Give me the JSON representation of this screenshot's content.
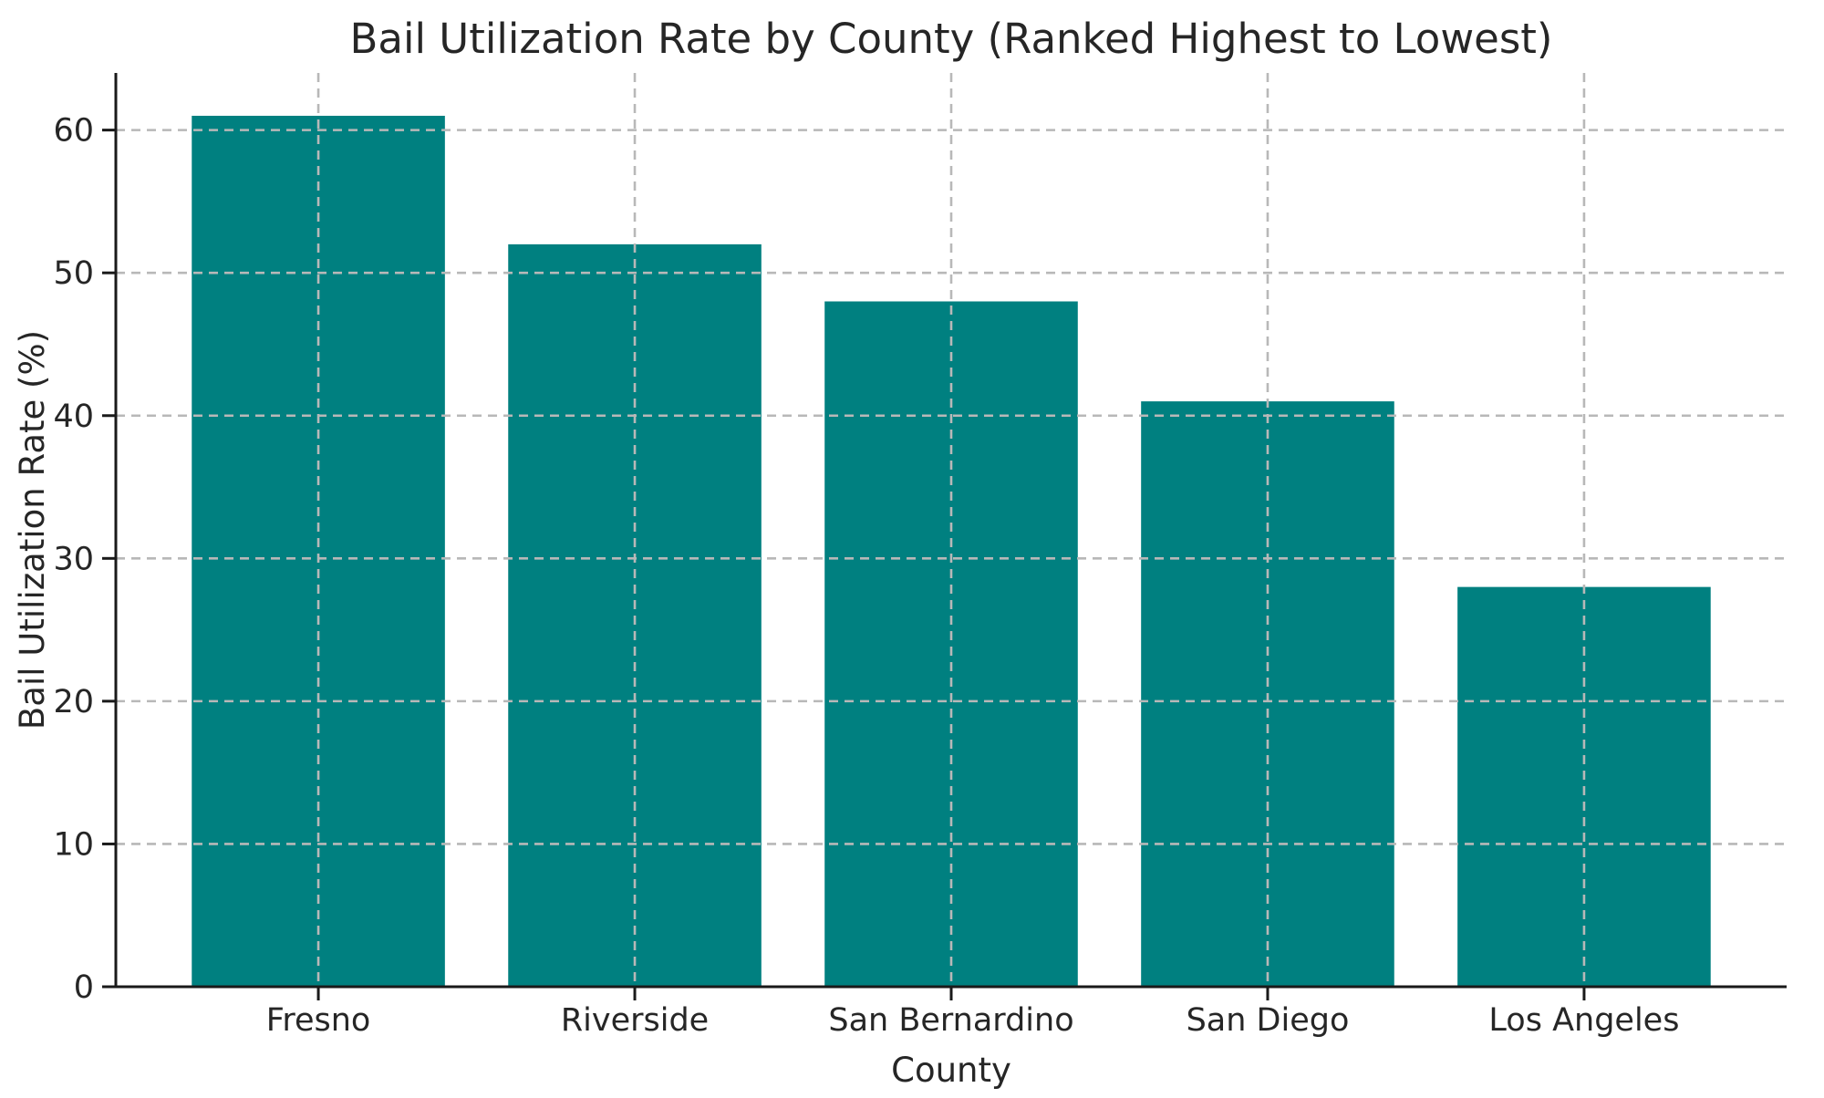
{
  "figure": {
    "background_color": "#ffffff"
  },
  "chart_data": {
    "type": "bar",
    "title": "Bail Utilization Rate by County (Ranked Highest to Lowest)",
    "xlabel": "County",
    "ylabel": "Bail Utilization Rate (%)",
    "categories": [
      "Fresno",
      "Riverside",
      "San Bernardino",
      "San Diego",
      "Los Angeles"
    ],
    "values": [
      61,
      52,
      48,
      41,
      28
    ],
    "yticks": [
      0,
      10,
      20,
      30,
      40,
      50,
      60
    ],
    "ylim": [
      0,
      64
    ],
    "bar_color": "#008080",
    "gridline_color": "#b8b8b8",
    "axis_color": "#1a1a1a",
    "text_color": "#262626",
    "grid": "dashed horizontal and vertical gridlines, drawn above bars",
    "legend": "none",
    "spines": "left and bottom only"
  }
}
